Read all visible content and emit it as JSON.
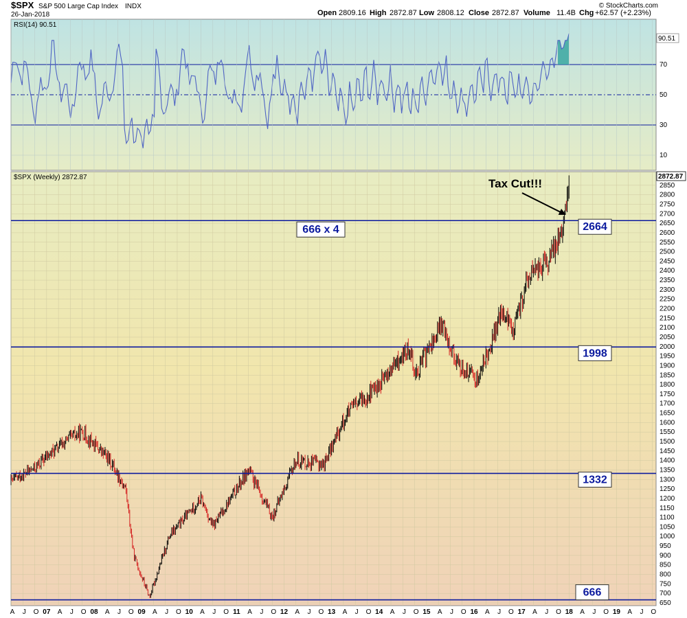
{
  "header": {
    "symbol": "$SPX",
    "name": "S&P 500 Large Cap Index",
    "exchange": "INDX",
    "date": "26-Jan-2018",
    "open_label": "Open",
    "open": "2809.16",
    "high_label": "High",
    "high": "2872.87",
    "low_label": "Low",
    "low": "2808.12",
    "close_label": "Close",
    "close": "2872.87",
    "volume_label": "Volume",
    "volume": "11.4B",
    "chg_label": "Chg",
    "chg": "+62.57 (+2.23%)",
    "brand": "© StockCharts.com"
  },
  "colors": {
    "line": "#0b1a9e",
    "rsi_line": "#4e63c4",
    "rsi_fill": "#3aa7a1",
    "price_up": "#000000",
    "price_down": "#d42020",
    "rsi_bg_top": "#bfe3e3",
    "rsi_bg_bottom": "#e6ecc6",
    "price_bg_top": "#e7ecc2",
    "price_bg_mid": "#f1e6ad",
    "price_bg_bottom": "#f0d2b8"
  },
  "chart_data": [
    {
      "type": "line",
      "title": "RSI(14) 90.51",
      "last_value_tag": "90.51",
      "ylim": [
        0,
        100
      ],
      "y_ticks": [
        "70",
        "50",
        "30",
        "10"
      ],
      "reference_lines": [
        70,
        50,
        30
      ],
      "x": [
        "2011-11",
        "2012-04",
        "2012-10",
        "2013-04",
        "2013-10",
        "2014-04",
        "2014-10",
        "2015-04",
        "2015-10",
        "2016-04",
        "2016-10",
        "2017-04",
        "2017-10",
        "2018-01"
      ],
      "series": [
        {
          "values": [
            62,
            44,
            73,
            38,
            58,
            55,
            44,
            70,
            44,
            62,
            55,
            52,
            79,
            90.51
          ]
        }
      ],
      "grid": true
    },
    {
      "type": "line",
      "title": "$SPX (Weekly) 2872.87",
      "last_value_tag": "2872.87",
      "ylim": [
        650,
        2900
      ],
      "y_ticks": [
        "2850",
        "2800",
        "2750",
        "2700",
        "2650",
        "2600",
        "2550",
        "2500",
        "2450",
        "2400",
        "2350",
        "2300",
        "2250",
        "2200",
        "2150",
        "2100",
        "2050",
        "2000",
        "1950",
        "1900",
        "1850",
        "1800",
        "1750",
        "1700",
        "1650",
        "1600",
        "1550",
        "1500",
        "1450",
        "1400",
        "1350",
        "1300",
        "1250",
        "1200",
        "1150",
        "1100",
        "1050",
        "1000",
        "950",
        "900",
        "850",
        "800",
        "750",
        "700",
        "650"
      ],
      "x_ticks": [
        "A",
        "J",
        "O",
        "07",
        "A",
        "J",
        "O",
        "08",
        "A",
        "J",
        "O",
        "09",
        "A",
        "J",
        "O",
        "10",
        "A",
        "J",
        "O",
        "11",
        "A",
        "J",
        "O",
        "12",
        "A",
        "J",
        "O",
        "13",
        "A",
        "J",
        "O",
        "14",
        "A",
        "J",
        "O",
        "15",
        "A",
        "J",
        "O",
        "16",
        "A",
        "J",
        "O",
        "17",
        "A",
        "J",
        "O",
        "18",
        "A",
        "J",
        "O",
        "19",
        "A",
        "J",
        "O"
      ],
      "x": [
        "2006-04",
        "2006-10",
        "2007-01",
        "2007-07",
        "2007-10",
        "2008-05",
        "2008-09",
        "2008-11",
        "2009-03",
        "2009-08",
        "2010-04",
        "2010-07",
        "2011-04",
        "2011-10",
        "2012-04",
        "2012-11",
        "2013-05",
        "2014-01",
        "2014-09",
        "2014-10",
        "2015-05",
        "2015-09",
        "2016-02",
        "2016-08",
        "2016-11",
        "2017-03",
        "2017-08",
        "2017-12",
        "2018-01"
      ],
      "series": [
        {
          "values": [
            1290,
            1360,
            1420,
            1520,
            1550,
            1400,
            1250,
            900,
            680,
            1000,
            1200,
            1050,
            1350,
            1100,
            1400,
            1380,
            1650,
            1800,
            2000,
            1850,
            2120,
            1900,
            1830,
            2180,
            2090,
            2380,
            2450,
            2680,
            2872.87
          ]
        }
      ],
      "horizontal_lines": [
        {
          "value": 2664,
          "label": "2664",
          "box": "666 x 4"
        },
        {
          "value": 1998,
          "label": "1998"
        },
        {
          "value": 1332,
          "label": "1332"
        },
        {
          "value": 666,
          "label": "666"
        }
      ],
      "annotations": [
        {
          "text": "Tax Cut!!!"
        }
      ],
      "grid": true
    }
  ]
}
